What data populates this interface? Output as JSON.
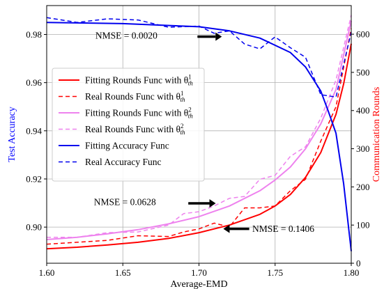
{
  "chart_data": {
    "type": "line",
    "title": "",
    "xlabel": "Average-EMD",
    "ylabel_left": "Test Accuracy",
    "ylabel_right": "Communication Rounds",
    "xlim": [
      1.6,
      1.8
    ],
    "ylim_left": [
      0.885,
      0.992
    ],
    "ylim_right": [
      0,
      675
    ],
    "x_ticks": [
      "1.60",
      "1.65",
      "1.70",
      "1.75",
      "1.80"
    ],
    "y_left_ticks": [
      "0.90",
      "0.92",
      "0.94",
      "0.96",
      "0.98"
    ],
    "y_right_ticks": [
      "0",
      "100",
      "200",
      "300",
      "400",
      "500",
      "600"
    ],
    "grid": true,
    "legend_position": "center-left",
    "colors": {
      "red": "#ff0000",
      "violet": "#ee82ee",
      "blue": "#0000ee",
      "left_axis_label": "#0000ff",
      "right_axis_label": "#ff0000"
    },
    "series": [
      {
        "name": "Fitting Rounds Func with θth1",
        "legend_main": "Fitting Rounds Func with θ",
        "legend_sub": "th",
        "legend_sup": "1",
        "axis": "right",
        "color": "#ff0000",
        "dash": "solid",
        "points": [
          [
            1.6,
            38
          ],
          [
            1.62,
            42
          ],
          [
            1.64,
            48
          ],
          [
            1.66,
            55
          ],
          [
            1.68,
            65
          ],
          [
            1.7,
            80
          ],
          [
            1.72,
            100
          ],
          [
            1.74,
            128
          ],
          [
            1.75,
            150
          ],
          [
            1.76,
            180
          ],
          [
            1.77,
            225
          ],
          [
            1.78,
            290
          ],
          [
            1.79,
            390
          ],
          [
            1.795,
            470
          ],
          [
            1.8,
            575
          ]
        ]
      },
      {
        "name": "Real Rounds Func with θth1",
        "legend_main": "Real Rounds Func with θ",
        "legend_sub": "th",
        "legend_sup": "1",
        "axis": "right",
        "color": "#ff0000",
        "dash": "dashed",
        "points": [
          [
            1.6,
            50
          ],
          [
            1.62,
            55
          ],
          [
            1.64,
            60
          ],
          [
            1.66,
            72
          ],
          [
            1.68,
            70
          ],
          [
            1.69,
            82
          ],
          [
            1.7,
            90
          ],
          [
            1.71,
            105
          ],
          [
            1.72,
            95
          ],
          [
            1.73,
            145
          ],
          [
            1.74,
            145
          ],
          [
            1.75,
            150
          ],
          [
            1.76,
            190
          ],
          [
            1.77,
            220
          ],
          [
            1.78,
            320
          ],
          [
            1.79,
            410
          ],
          [
            1.8,
            615
          ]
        ]
      },
      {
        "name": "Fitting Rounds Func with θth2",
        "legend_main": "Fitting Rounds Func with θ",
        "legend_sub": "th",
        "legend_sup": "2",
        "axis": "right",
        "color": "#ee82ee",
        "dash": "solid",
        "points": [
          [
            1.6,
            62
          ],
          [
            1.62,
            68
          ],
          [
            1.64,
            77
          ],
          [
            1.66,
            88
          ],
          [
            1.68,
            103
          ],
          [
            1.7,
            122
          ],
          [
            1.72,
            150
          ],
          [
            1.74,
            190
          ],
          [
            1.75,
            218
          ],
          [
            1.76,
            252
          ],
          [
            1.77,
            300
          ],
          [
            1.78,
            365
          ],
          [
            1.79,
            455
          ],
          [
            1.8,
            635
          ]
        ]
      },
      {
        "name": "Real Rounds Func with θth2",
        "legend_main": "Real Rounds Func with θ",
        "legend_sub": "th",
        "legend_sup": "2",
        "axis": "right",
        "color": "#ee82ee",
        "dash": "dashed",
        "points": [
          [
            1.6,
            68
          ],
          [
            1.62,
            68
          ],
          [
            1.64,
            80
          ],
          [
            1.66,
            82
          ],
          [
            1.68,
            100
          ],
          [
            1.69,
            130
          ],
          [
            1.7,
            135
          ],
          [
            1.71,
            150
          ],
          [
            1.72,
            170
          ],
          [
            1.73,
            175
          ],
          [
            1.74,
            220
          ],
          [
            1.75,
            230
          ],
          [
            1.76,
            280
          ],
          [
            1.77,
            305
          ],
          [
            1.78,
            380
          ],
          [
            1.79,
            480
          ],
          [
            1.8,
            650
          ]
        ]
      },
      {
        "name": "Fitting Accuracy Func",
        "legend_main": "Fitting Accuracy Func",
        "axis": "left",
        "color": "#0000ee",
        "dash": "solid",
        "points": [
          [
            1.6,
            0.985
          ],
          [
            1.65,
            0.9845
          ],
          [
            1.7,
            0.9832
          ],
          [
            1.72,
            0.9815
          ],
          [
            1.74,
            0.9785
          ],
          [
            1.76,
            0.9725
          ],
          [
            1.77,
            0.9665
          ],
          [
            1.78,
            0.9565
          ],
          [
            1.785,
            0.948
          ],
          [
            1.79,
            0.939
          ],
          [
            1.795,
            0.918
          ],
          [
            1.8,
            0.89
          ]
        ]
      },
      {
        "name": "Real Accuracy Func",
        "legend_main": "Real Accuracy Func",
        "axis": "left",
        "color": "#0000ee",
        "dash": "dashed",
        "points": [
          [
            1.6,
            0.987
          ],
          [
            1.62,
            0.985
          ],
          [
            1.64,
            0.9865
          ],
          [
            1.66,
            0.986
          ],
          [
            1.68,
            0.983
          ],
          [
            1.7,
            0.9835
          ],
          [
            1.71,
            0.9805
          ],
          [
            1.72,
            0.9815
          ],
          [
            1.73,
            0.976
          ],
          [
            1.74,
            0.974
          ],
          [
            1.75,
            0.979
          ],
          [
            1.76,
            0.9745
          ],
          [
            1.77,
            0.9705
          ],
          [
            1.78,
            0.955
          ],
          [
            1.79,
            0.954
          ],
          [
            1.8,
            0.981
          ]
        ]
      }
    ],
    "annotations": [
      {
        "label": "NMSE = 0.0020",
        "text_at": [
          1.632,
          0.9783
        ],
        "text_axis": "left",
        "arrow_from": [
          1.699,
          0.9791
        ],
        "arrow_to": [
          1.715,
          0.9791
        ],
        "arrow_axis": "left"
      },
      {
        "label": "NMSE = 0.0628",
        "text_at": [
          1.631,
          152
        ],
        "text_axis": "right",
        "arrow_from": [
          1.693,
          157
        ],
        "arrow_to": [
          1.711,
          157
        ],
        "arrow_axis": "right"
      },
      {
        "label": "NMSE = 0.1406",
        "text_at": [
          1.735,
          82
        ],
        "text_axis": "right",
        "arrow_from": [
          1.733,
          90
        ],
        "arrow_to": [
          1.716,
          90
        ],
        "arrow_axis": "right"
      }
    ]
  }
}
